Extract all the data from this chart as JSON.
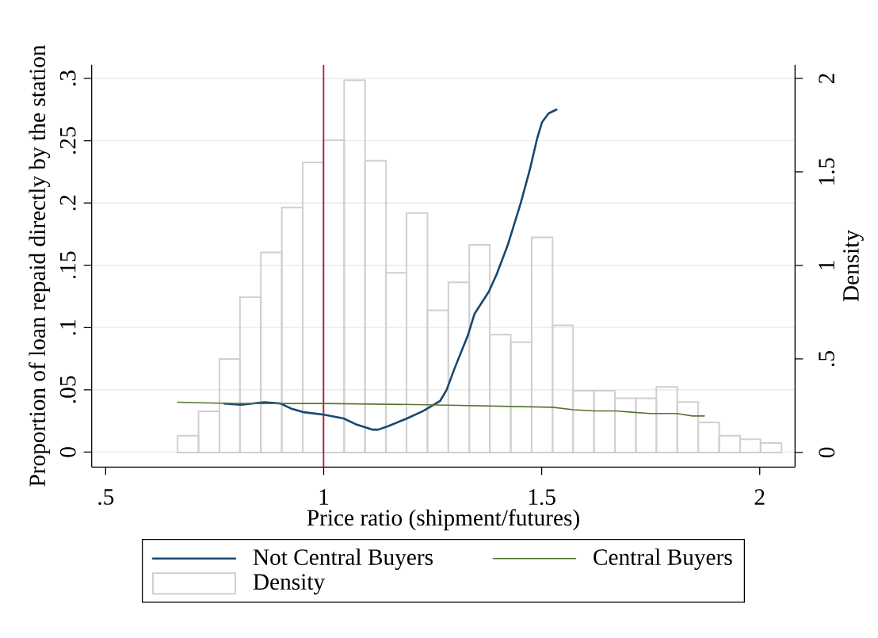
{
  "chart_data": {
    "type": "line",
    "xlabel": "Price ratio (shipment/futures)",
    "ylabel": "Proportion of loan repaid directly by the station",
    "y2label": "Density",
    "xlim": [
      0.468,
      2.081
    ],
    "xticks": [
      {
        "value": 0.5,
        "label": ".5"
      },
      1,
      1.5,
      2
    ],
    "ylim": [
      -0.012,
      0.311
    ],
    "yticks": [
      0,
      {
        "value": 0.05,
        "label": ".05"
      },
      {
        "value": 0.1,
        "label": ".1"
      },
      {
        "value": 0.15,
        "label": ".15"
      },
      {
        "value": 0.2,
        "label": ".2"
      },
      {
        "value": 0.25,
        "label": ".25"
      },
      {
        "value": 0.3,
        "label": ".3"
      }
    ],
    "y2lim": [
      -0.078,
      2.073
    ],
    "y2ticks": [
      0,
      {
        "value": 0.5,
        "label": ".5"
      },
      1,
      1.5,
      2
    ],
    "grid": "y",
    "legend": "bottom",
    "ref_lines": [
      {
        "axis": "x",
        "value": 1,
        "color": "#c8102e"
      }
    ],
    "series": [
      {
        "name": "Not Central Buyers",
        "color": "#1a476f",
        "x": [
          0.772,
          0.81,
          0.864,
          0.901,
          0.925,
          0.955,
          1.001,
          1.046,
          1.076,
          1.113,
          1.125,
          1.149,
          1.191,
          1.228,
          1.267,
          1.282,
          1.3,
          1.331,
          1.346,
          1.379,
          1.397,
          1.422,
          1.452,
          1.473,
          1.489,
          1.501,
          1.516,
          1.534
        ],
        "values": [
          0.039,
          0.038,
          0.04,
          0.039,
          0.035,
          0.032,
          0.03,
          0.027,
          0.022,
          0.018,
          0.018,
          0.021,
          0.027,
          0.033,
          0.041,
          0.05,
          0.067,
          0.094,
          0.111,
          0.129,
          0.143,
          0.166,
          0.2,
          0.227,
          0.251,
          0.265,
          0.272,
          0.275
        ]
      },
      {
        "name": "Central Buyers",
        "color": "#55752f",
        "x": [
          0.665,
          0.804,
          1.001,
          1.24,
          1.525,
          1.573,
          1.622,
          1.67,
          1.707,
          1.749,
          1.81,
          1.846,
          1.873
        ],
        "values": [
          0.04,
          0.039,
          0.039,
          0.038,
          0.036,
          0.034,
          0.033,
          0.033,
          0.032,
          0.031,
          0.031,
          0.029,
          0.029
        ]
      },
      {
        "name": "Density",
        "type": "histogram",
        "axis": "y2",
        "color": "#d0d0d0",
        "bins": [
          0.665,
          0.713,
          0.761,
          0.808,
          0.856,
          0.904,
          0.952,
          0.999,
          1.047,
          1.095,
          1.143,
          1.19,
          1.238,
          1.286,
          1.334,
          1.381,
          1.429,
          1.477,
          1.525,
          1.572,
          1.62,
          1.668,
          1.716,
          1.763,
          1.811,
          1.859,
          1.907,
          1.955,
          2.002,
          2.05
        ],
        "values": [
          0.09,
          0.22,
          0.5,
          0.83,
          1.07,
          1.31,
          1.55,
          1.67,
          1.99,
          1.56,
          0.96,
          1.28,
          0.76,
          0.91,
          1.11,
          0.63,
          0.59,
          1.15,
          0.68,
          0.33,
          0.33,
          0.29,
          0.29,
          0.35,
          0.27,
          0.16,
          0.09,
          0.07,
          0.05
        ]
      }
    ]
  }
}
